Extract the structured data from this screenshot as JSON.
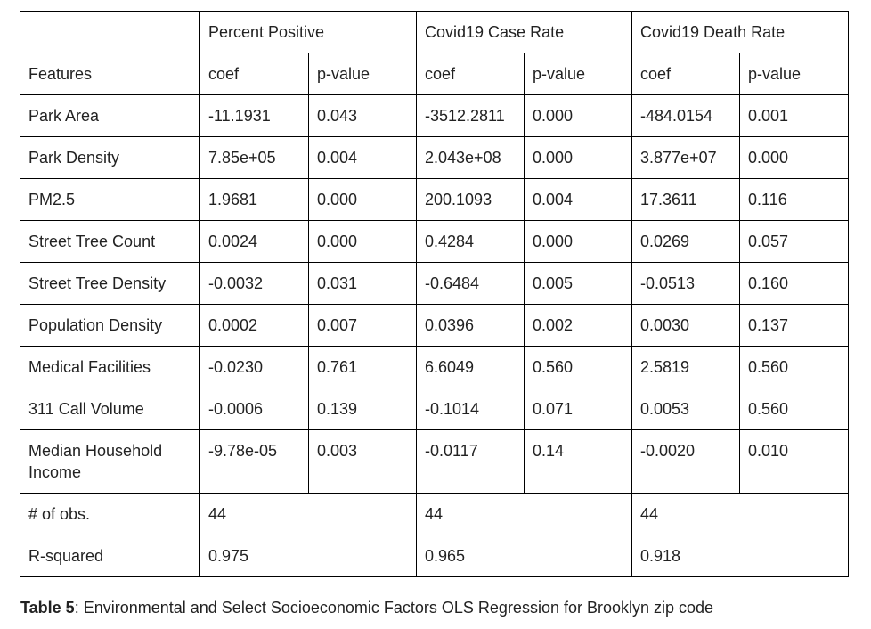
{
  "table": {
    "group_headers": [
      "",
      "Percent Positive",
      "Covid19 Case Rate",
      "Covid19 Death Rate"
    ],
    "sub_headers": [
      "Features",
      "coef",
      "p-value",
      "coef",
      "p-value",
      "coef",
      "p-value"
    ],
    "rows": [
      {
        "feature": "Park Area",
        "values": [
          "-11.1931",
          "0.043",
          "-3512.2811",
          "0.000",
          "-484.0154",
          "0.001"
        ]
      },
      {
        "feature": "Park Density",
        "values": [
          "7.85e+05",
          "0.004",
          "2.043e+08",
          "0.000",
          "3.877e+07",
          "0.000"
        ]
      },
      {
        "feature": "PM2.5",
        "values": [
          "1.9681",
          "0.000",
          "200.1093",
          "0.004",
          "17.3611",
          "0.116"
        ]
      },
      {
        "feature": "Street Tree Count",
        "values": [
          "0.0024",
          "0.000",
          "0.4284",
          "0.000",
          "0.0269",
          "0.057"
        ]
      },
      {
        "feature": "Street Tree Density",
        "values": [
          "-0.0032",
          "0.031",
          "-0.6484",
          "0.005",
          "-0.0513",
          "0.160"
        ]
      },
      {
        "feature": "Population Density",
        "values": [
          "0.0002",
          "0.007",
          "0.0396",
          "0.002",
          "0.0030",
          "0.137"
        ]
      },
      {
        "feature": "Medical Facilities",
        "values": [
          "-0.0230",
          "0.761",
          "6.6049",
          "0.560",
          "2.5819",
          "0.560"
        ]
      },
      {
        "feature": "311 Call Volume",
        "values": [
          "-0.0006",
          "0.139",
          "-0.1014",
          "0.071",
          "0.0053",
          "0.560"
        ]
      },
      {
        "feature": "Median Household Income",
        "values": [
          "-9.78e-05",
          "0.003",
          "-0.0117",
          "0.14",
          "-0.0020",
          "0.010"
        ]
      }
    ],
    "summary_rows": [
      {
        "label": "# of obs.",
        "values": [
          "44",
          "44",
          "44"
        ]
      },
      {
        "label": "R-squared",
        "values": [
          "0.975",
          "0.965",
          "0.918"
        ]
      }
    ]
  },
  "caption": {
    "label": "Table 5",
    "text": ": Environmental and Select Socioeconomic Factors OLS Regression for Brooklyn zip code"
  }
}
